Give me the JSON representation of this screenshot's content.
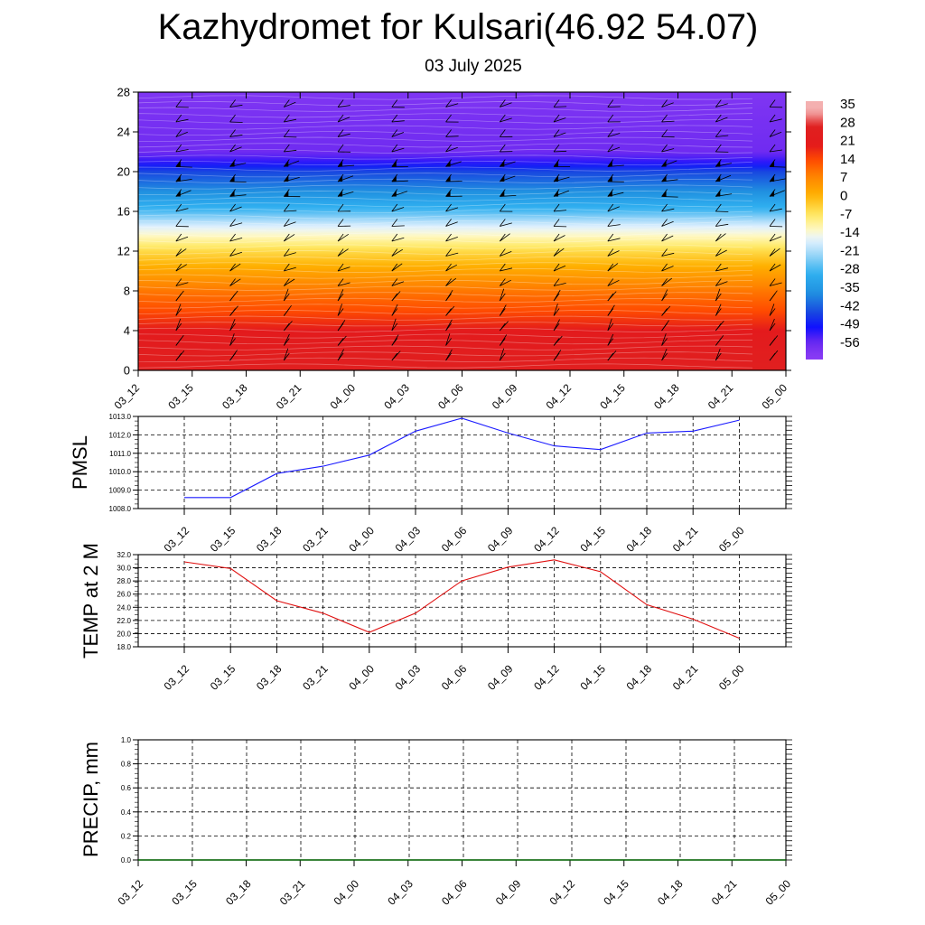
{
  "title": "Kazhydromet for Kulsari(46.92 54.07)",
  "subtitle": "03 July 2025",
  "chart_data": [
    {
      "type": "heatmap",
      "name": "temperature-cross-section",
      "y_ticks": [
        0,
        4,
        8,
        12,
        16,
        20,
        24,
        28
      ],
      "ylim": [
        0,
        28
      ],
      "x_ticks": [
        "03_12",
        "03_15",
        "03_18",
        "03_21",
        "04_00",
        "04_03",
        "04_06",
        "04_09",
        "04_12",
        "04_15",
        "04_18",
        "04_21",
        "05_00"
      ],
      "profile": [
        {
          "level": 0,
          "value": 31
        },
        {
          "level": 2,
          "value": 28
        },
        {
          "level": 4,
          "value": 24
        },
        {
          "level": 6,
          "value": 18
        },
        {
          "level": 8,
          "value": 13
        },
        {
          "level": 10,
          "value": 6
        },
        {
          "level": 12,
          "value": -2
        },
        {
          "level": 13.5,
          "value": -10
        },
        {
          "level": 14.5,
          "value": -15
        },
        {
          "level": 16,
          "value": -26
        },
        {
          "level": 18,
          "value": -36
        },
        {
          "level": 20,
          "value": -44
        },
        {
          "level": 21,
          "value": -52
        },
        {
          "level": 22,
          "value": -57
        },
        {
          "level": 28,
          "value": -60
        }
      ],
      "colorbar": {
        "labels": [
          "35",
          "28",
          "21",
          "14",
          "7",
          "0",
          "-7",
          "-14",
          "-21",
          "-28",
          "-35",
          "-42",
          "-49",
          "-56"
        ],
        "stops": [
          {
            "value": 38,
            "color": "#f4b0b0"
          },
          {
            "value": 32,
            "color": "#e02020"
          },
          {
            "value": 24,
            "color": "#e31a1c"
          },
          {
            "value": 18,
            "color": "#ff4b00"
          },
          {
            "value": 12,
            "color": "#ff8000"
          },
          {
            "value": 4,
            "color": "#ffb000"
          },
          {
            "value": -4,
            "color": "#ffe860"
          },
          {
            "value": -10,
            "color": "#fff8c0"
          },
          {
            "value": -14,
            "color": "#e8f4ff"
          },
          {
            "value": -20,
            "color": "#a0d8f8"
          },
          {
            "value": -28,
            "color": "#30b0f0"
          },
          {
            "value": -36,
            "color": "#2090e0"
          },
          {
            "value": -44,
            "color": "#1846e0"
          },
          {
            "value": -50,
            "color": "#1010ff"
          },
          {
            "value": -56,
            "color": "#6a28f0"
          },
          {
            "value": -62,
            "color": "#8a3cf4"
          }
        ]
      }
    },
    {
      "type": "line",
      "name": "pmsl",
      "ylabel": "PMSL",
      "x": [
        "03_12",
        "03_15",
        "03_18",
        "03_21",
        "04_00",
        "04_03",
        "04_06",
        "04_09",
        "04_12",
        "04_15",
        "04_18",
        "04_21",
        "05_00"
      ],
      "values": [
        1008.6,
        1008.6,
        1009.9,
        1010.3,
        1010.9,
        1012.2,
        1012.9,
        1012.1,
        1011.4,
        1011.2,
        1012.1,
        1012.2,
        1012.8
      ],
      "ylim": [
        1008.0,
        1013.0
      ],
      "y_ticks": [
        "1008.0",
        "1009.0",
        "1010.0",
        "1011.0",
        "1012.0",
        "1013.0"
      ],
      "color": "#1a1aff"
    },
    {
      "type": "line",
      "name": "temp-2m",
      "ylabel": "TEMP at 2 M",
      "x": [
        "03_12",
        "03_15",
        "03_18",
        "03_21",
        "04_00",
        "04_03",
        "04_06",
        "04_09",
        "04_12",
        "04_15",
        "04_18",
        "04_21",
        "05_00"
      ],
      "values": [
        30.9,
        29.9,
        25.0,
        23.1,
        20.2,
        23.1,
        28.0,
        30.1,
        31.2,
        29.4,
        24.4,
        22.2,
        19.3
      ],
      "ylim": [
        18.0,
        32.0
      ],
      "y_ticks": [
        "18.0",
        "20.0",
        "22.0",
        "24.0",
        "26.0",
        "28.0",
        "30.0",
        "32.0"
      ],
      "color": "#e01010"
    },
    {
      "type": "line",
      "name": "precip",
      "ylabel": "PRECIP, mm",
      "x": [
        "03_12",
        "03_15",
        "03_18",
        "03_21",
        "04_00",
        "04_03",
        "04_06",
        "04_09",
        "04_12",
        "04_15",
        "04_18",
        "04_21",
        "05_00"
      ],
      "values": [
        0,
        0,
        0,
        0,
        0,
        0,
        0,
        0,
        0,
        0,
        0,
        0,
        0
      ],
      "ylim": [
        0.0,
        1.0
      ],
      "y_ticks": [
        "0.0",
        "0.2",
        "0.4",
        "0.6",
        "0.8",
        "1.0"
      ],
      "color": "#006400"
    }
  ]
}
